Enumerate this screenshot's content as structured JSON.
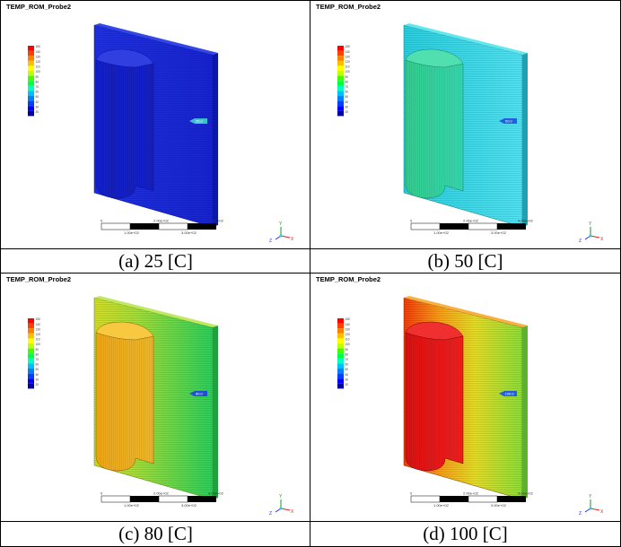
{
  "panels": [
    {
      "title": "TEMP_ROM_Probe2",
      "caption": "(a)  25  [C]",
      "probe_value": "25.0",
      "palette": "a"
    },
    {
      "title": "TEMP_ROM_Probe2",
      "caption": "(b)  50  [C]",
      "probe_value": "50.0",
      "palette": "b"
    },
    {
      "title": "TEMP_ROM_Probe2",
      "caption": "(c)  80  [C]",
      "probe_value": "80.0",
      "palette": "c"
    },
    {
      "title": "TEMP_ROM_Probe2",
      "caption": "(d)  100  [C]",
      "probe_value": "100.0",
      "palette": "d"
    }
  ],
  "legend": {
    "labels": [
      "150",
      "140",
      "130",
      "120",
      "110",
      "100",
      "90",
      "80",
      "70",
      "60",
      "50",
      "40",
      "30",
      "20"
    ],
    "colors": [
      "#ff0000",
      "#ff4000",
      "#ff8000",
      "#ffbf00",
      "#ffff00",
      "#bfff00",
      "#40ff00",
      "#00ff40",
      "#00ffbf",
      "#00bfff",
      "#0080ff",
      "#0040ff",
      "#0000ff",
      "#0000a0"
    ]
  },
  "scalebar": {
    "top_labels": [
      "0",
      "2.00e+02",
      "4.00e+02"
    ],
    "bottom_labels": [
      "1.00e+02",
      "3.00e+02"
    ]
  },
  "axis_labels": {
    "y": "Y",
    "z": "Z",
    "x": "X"
  },
  "colors": {
    "a": {
      "plate_left": "#2030d8",
      "plate_right": "#1a28d0",
      "cyl_front": "#1420c8",
      "cyl_top": "#3040e0",
      "edge": "#0a10a0"
    },
    "b": {
      "plate_left": "#30d0e0",
      "plate_right": "#50e0f0",
      "cyl_front": "#30d098",
      "cyl_top": "#50e0b0",
      "edge": "#208080"
    },
    "c": {
      "plate_left": "#b0e040",
      "plate_right": "#30d060",
      "cyl_front": "#f0b020",
      "cyl_top": "#f8c840",
      "edge": "#806010"
    },
    "d": {
      "plate_left": "#f06020",
      "plate_right": "#a0e040",
      "cyl_front": "#e81818",
      "cyl_top": "#f03030",
      "edge": "#800000"
    }
  }
}
